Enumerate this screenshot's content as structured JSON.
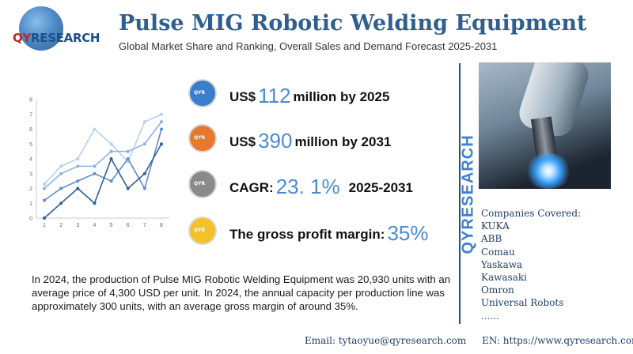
{
  "logo": {
    "text_q": "QY",
    "text_rest": "RESEARCH"
  },
  "title": "Pulse MIG Robotic Welding Equipment",
  "subtitle": "Global Market Share and Ranking, Overall Sales and Demand Forecast 2025-2031",
  "stats": [
    {
      "prefix": "US$",
      "value": "112",
      "suffix": "million by 2025",
      "color": "#3b7ec9",
      "icon": "qyr-badge-blue"
    },
    {
      "prefix": "US$",
      "value": "390",
      "suffix": "million by 2031",
      "color": "#e8782f",
      "icon": "qyr-badge-orange"
    },
    {
      "prefix": "CAGR:",
      "value": "23. 1%",
      "suffix": "2025-2031",
      "color": "#8a8a8a",
      "icon": "qyr-badge-gray"
    },
    {
      "prefix": "The gross profit margin:",
      "value": "35%",
      "suffix": "",
      "color": "#f2c228",
      "icon": "qyr-badge-yellow"
    }
  ],
  "side_brand": "QYRESEARCH",
  "companies": {
    "heading": "Companies Covered:",
    "items": [
      "KUKA",
      "ABB",
      "Comau",
      "Yaskawa",
      "Kawasaki",
      "Omron",
      "Universal Robots",
      "......"
    ]
  },
  "description": "In 2024, the production of Pulse MIG Robotic Welding Equipment was 20,930 units with an average price of 4,300 USD per unit. In 2024, the annual capacity per production line was approximately 300 units, with an average gross margin of around 35%.",
  "footer": {
    "email": "Email: tytaoyue@qyresearch.com",
    "web": "EN: https://www.qyresearch.com"
  },
  "chart_data": {
    "type": "line",
    "x": [
      1,
      2,
      3,
      4,
      5,
      6,
      7,
      8
    ],
    "ylim": [
      0,
      8
    ],
    "yticks": [
      0,
      1,
      2,
      3,
      4,
      5,
      6,
      7,
      8
    ],
    "series": [
      {
        "values": [
          2.3,
          3.5,
          4.0,
          6.0,
          5.0,
          3.8,
          6.5,
          7.0
        ],
        "color": "#b8cfea"
      },
      {
        "values": [
          2.0,
          3.0,
          3.5,
          3.5,
          4.5,
          4.5,
          5.0,
          6.5
        ],
        "color": "#8fb2dd"
      },
      {
        "values": [
          1.2,
          2.0,
          2.5,
          3.0,
          2.5,
          4.0,
          2.0,
          6.0
        ],
        "color": "#5f8fc8"
      },
      {
        "values": [
          0.0,
          1.0,
          2.0,
          1.0,
          4.0,
          2.0,
          3.0,
          5.0
        ],
        "color": "#2f5f95"
      }
    ]
  }
}
